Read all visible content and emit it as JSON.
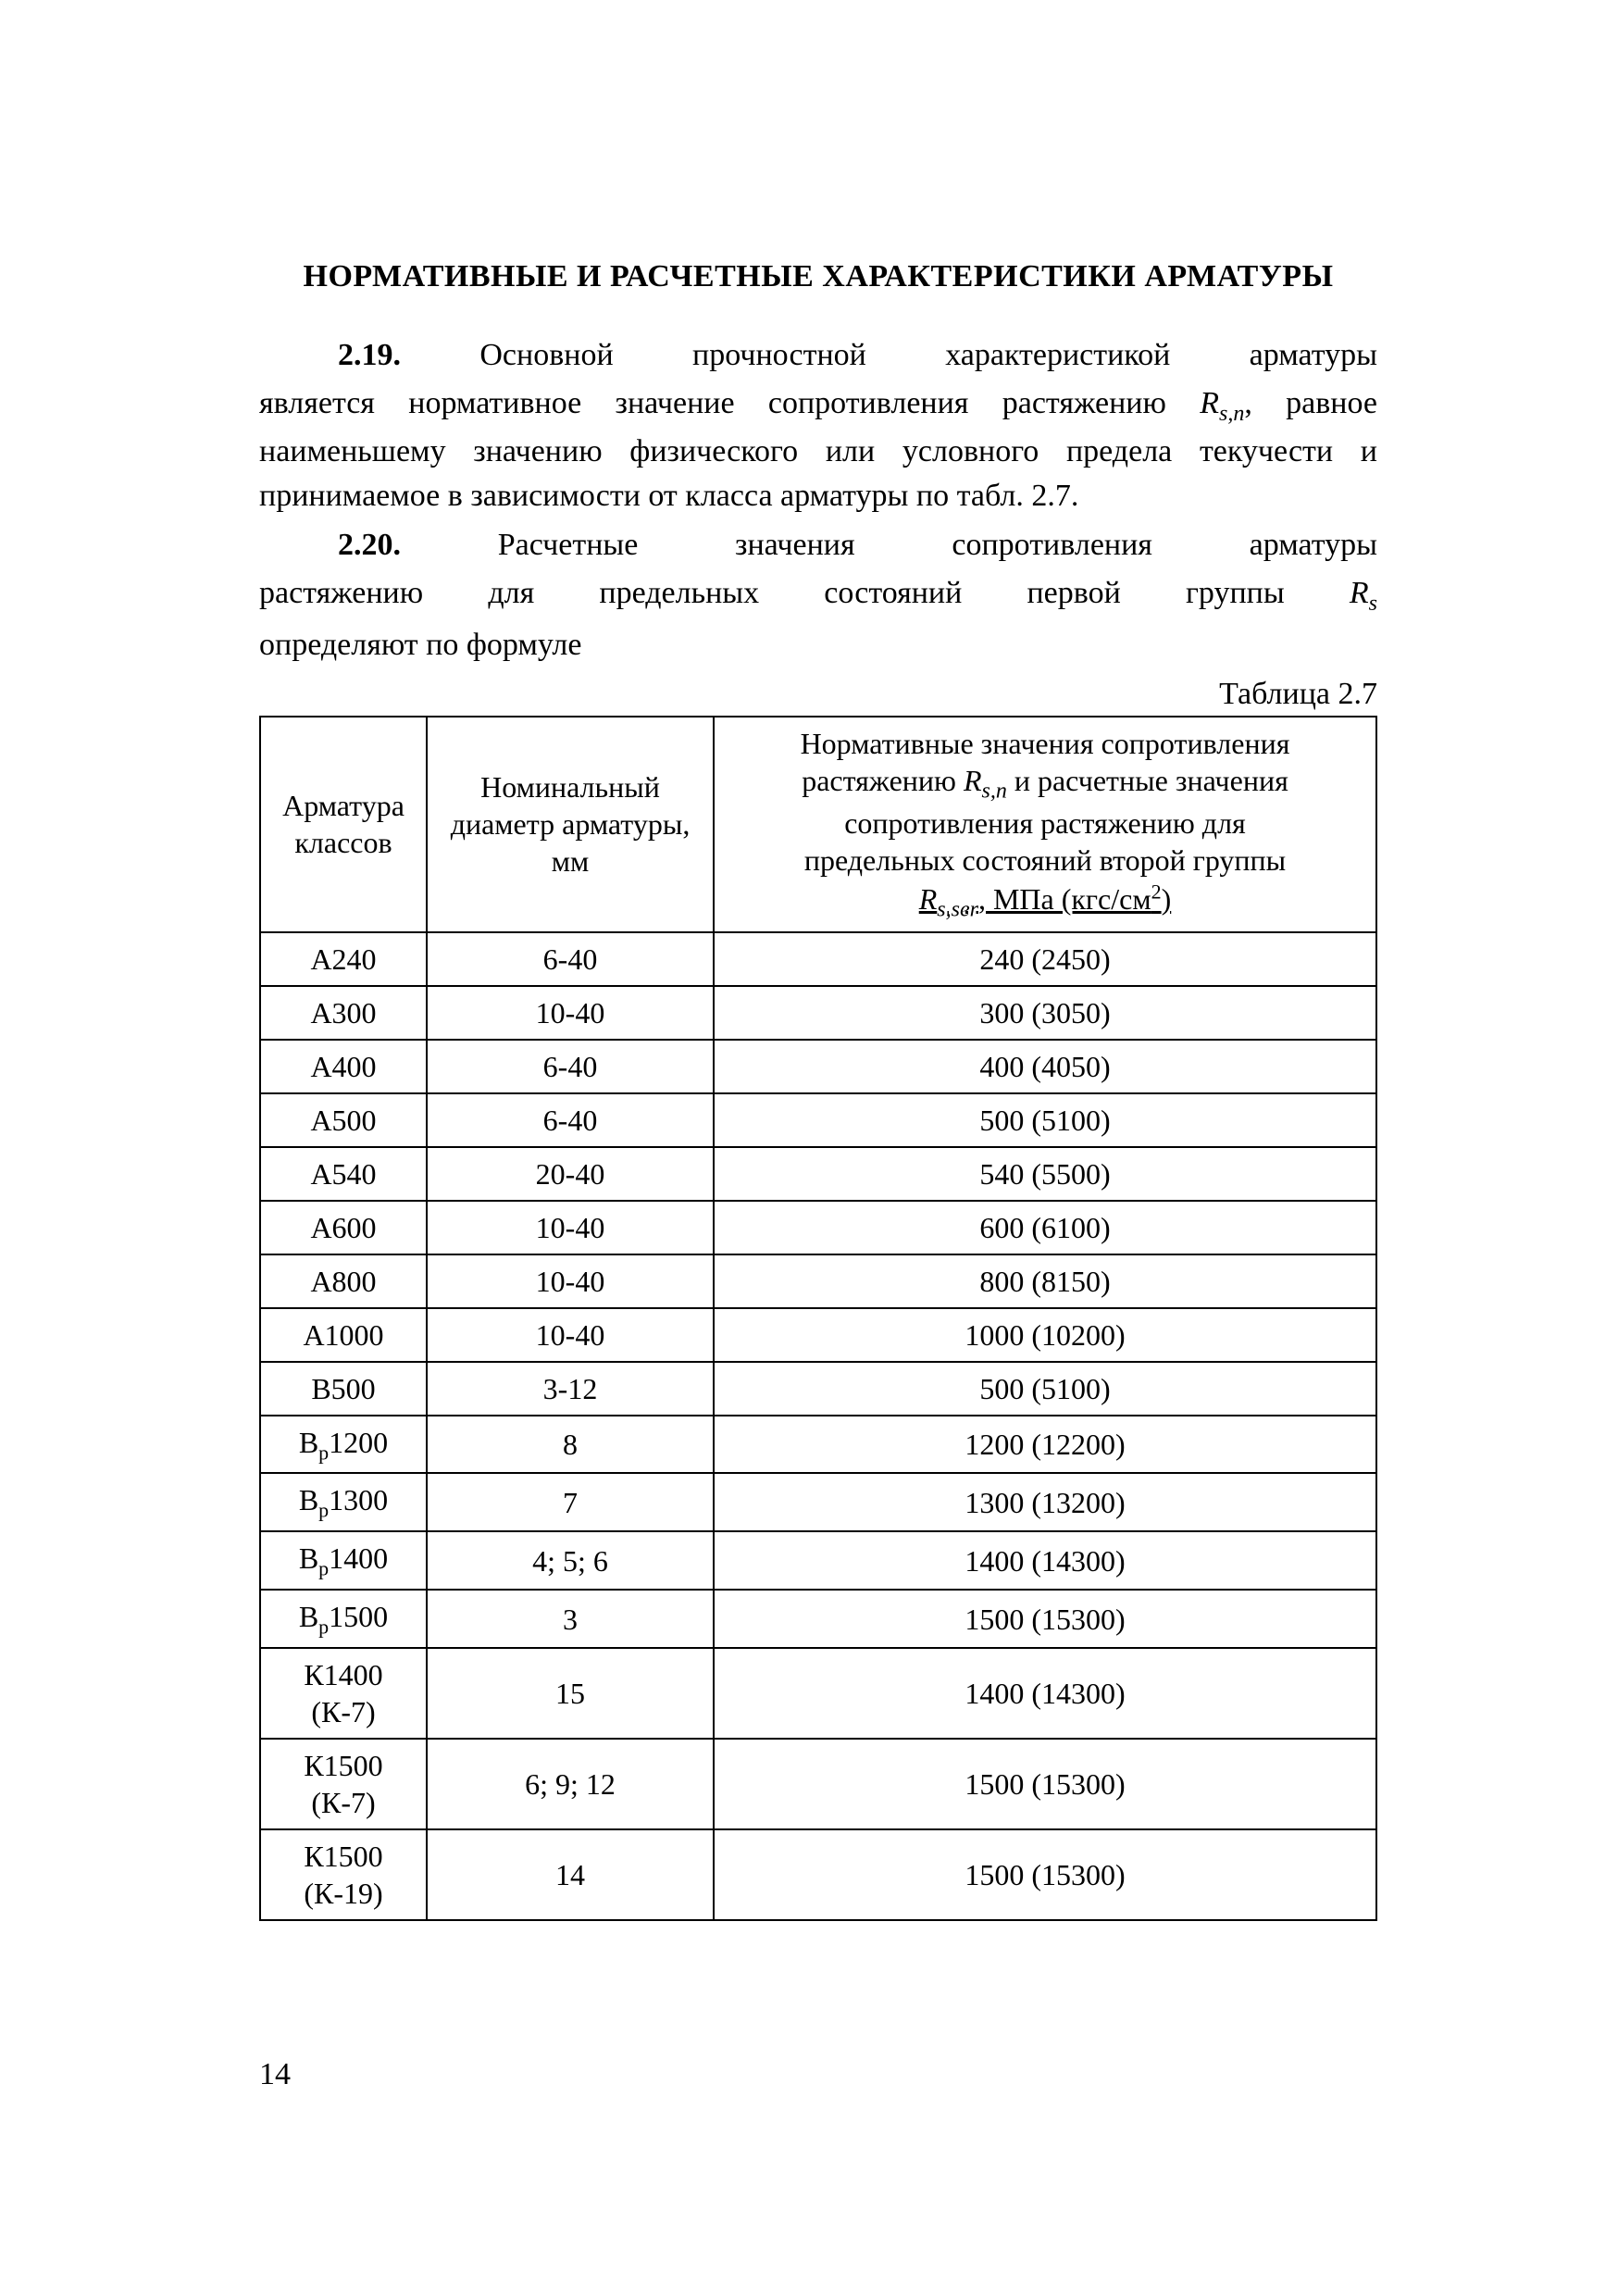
{
  "title": "НОРМАТИВНЫЕ И РАСЧЕТНЫЕ ХАРАКТЕРИСТИКИ АРМАТУРЫ",
  "paragraphs": {
    "p219_num": "2.19.",
    "p219_lead": "Основной прочностной характеристикой арматуры",
    "p219_rest_a": "является нормативное значение сопротивления растяжению ",
    "p219_sym": "R",
    "p219_sub": "s,n",
    "p219_rest_b": ", равное наименьшему значению физического или условного предела текучести и принимаемое в зависимости от класса арматуры по табл. 2.7.",
    "p220_num": "2.20.",
    "p220_lead": "Расчетные значения сопротивления арматуры",
    "p220_rest_a": "растяжению для предельных состояний первой группы ",
    "p220_sym": "R",
    "p220_sub": "s",
    "p220_rest_b": "определяют по формуле"
  },
  "table": {
    "caption": "Таблица 2.7",
    "headers": {
      "col1": "Арматура классов",
      "col2": "Номинальный диаметр арматуры, мм",
      "col3_l1": "Нормативные значения сопротивления",
      "col3_l2a": "растяжению ",
      "col3_sym1": "R",
      "col3_sub1": "s,n",
      "col3_l2b": " и расчетные значения",
      "col3_l3": "сопротивления растяжению для",
      "col3_l4": "предельных состояний второй группы",
      "col3_sym2": "R",
      "col3_sub2": "s,ser",
      "col3_l5b": ", МПа (кгс/см",
      "col3_sup": "2",
      "col3_l5c": ")"
    },
    "rows": [
      {
        "c1": "A240",
        "c2": "6-40",
        "c3": "240 (2450)"
      },
      {
        "c1": "A300",
        "c2": "10-40",
        "c3": "300 (3050)"
      },
      {
        "c1": "A400",
        "c2": "6-40",
        "c3": "400 (4050)"
      },
      {
        "c1": "A500",
        "c2": "6-40",
        "c3": "500 (5100)"
      },
      {
        "c1": "A540",
        "c2": "20-40",
        "c3": "540 (5500)"
      },
      {
        "c1": "A600",
        "c2": "10-40",
        "c3": "600 (6100)"
      },
      {
        "c1": "A800",
        "c2": "10-40",
        "c3": "800 (8150)"
      },
      {
        "c1": "A1000",
        "c2": "10-40",
        "c3": "1000 (10200)"
      },
      {
        "c1": "B500",
        "c2": "3-12",
        "c3": "500 (5100)"
      },
      {
        "c1_html": "B<sub style='font-size:22px;font-style:normal'>р</sub>1200",
        "c2": "8",
        "c3": "1200 (12200)"
      },
      {
        "c1_html": "B<sub style='font-size:22px;font-style:normal'>р</sub>1300",
        "c2": "7",
        "c3": "1300 (13200)"
      },
      {
        "c1_html": "B<sub style='font-size:22px;font-style:normal'>р</sub>1400",
        "c2": "4; 5; 6",
        "c3": "1400 (14300)"
      },
      {
        "c1_html": "B<sub style='font-size:22px;font-style:normal'>р</sub>1500",
        "c2": "3",
        "c3": "1500 (15300)"
      },
      {
        "c1_html": "К1400<br>(К-7)",
        "c2": "15",
        "c3": "1400 (14300)"
      },
      {
        "c1_html": "К1500<br>(К-7)",
        "c2": "6; 9; 12",
        "c3": "1500 (15300)"
      },
      {
        "c1_html": "К1500<br>(К-19)",
        "c2": "14",
        "c3": "1500 (15300)"
      }
    ]
  },
  "page_number": "14"
}
